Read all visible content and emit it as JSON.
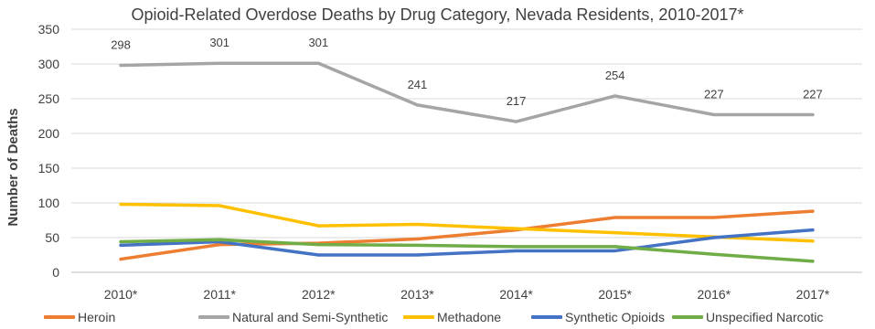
{
  "chart_data": {
    "type": "line",
    "title": "Opioid-Related Overdose Deaths by Drug Category, Nevada Residents, 2010-2017*",
    "xlabel": "",
    "ylabel": "Number of Deaths",
    "ylim": [
      0,
      350
    ],
    "yticks": [
      "0",
      "50",
      "100",
      "150",
      "200",
      "250",
      "300",
      "350"
    ],
    "categories": [
      "2010*",
      "2011*",
      "2012*",
      "2013*",
      "2014*",
      "2015*",
      "2016*",
      "2017*"
    ],
    "grid": true,
    "legend_position": "bottom",
    "series": [
      {
        "name": "Heroin",
        "color": "#ED7D31",
        "values": [
          19,
          40,
          42,
          48,
          61,
          79,
          79,
          88
        ]
      },
      {
        "name": "Natural and Semi-Synthetic",
        "color": "#A5A5A5",
        "values": [
          298,
          301,
          301,
          241,
          217,
          254,
          227,
          227
        ],
        "data_labels": [
          "298",
          "301",
          "301",
          "241",
          "217",
          "254",
          "227",
          "227"
        ]
      },
      {
        "name": "Methadone",
        "color": "#FFC000",
        "values": [
          98,
          96,
          67,
          69,
          63,
          57,
          51,
          45
        ]
      },
      {
        "name": "Synthetic Opioids",
        "color": "#4472C4",
        "values": [
          39,
          44,
          25,
          25,
          31,
          31,
          50,
          61
        ]
      },
      {
        "name": "Unspecified Narcotic",
        "color": "#70AD47",
        "values": [
          44,
          47,
          40,
          39,
          37,
          37,
          26,
          16
        ]
      }
    ]
  }
}
